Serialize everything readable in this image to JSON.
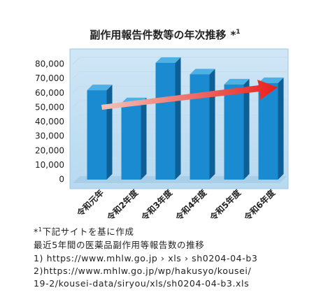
{
  "chart_data": {
    "type": "bar",
    "title": "副作用報告件数等の年次推移",
    "title_mark": "*",
    "title_mark_sup": "1",
    "categories": [
      "令和元年",
      "令和2年度",
      "令和3年度",
      "令和4年度",
      "令和5年度",
      "令和6年度"
    ],
    "values": [
      62000,
      53000,
      81000,
      73000,
      66000,
      67000
    ],
    "color": "#1a8bd0",
    "ylim": [
      0,
      80000
    ],
    "yticks": [
      0,
      {
        "value": 10000,
        "label": "10,000"
      },
      {
        "value": 20000,
        "label": "20,000"
      },
      {
        "value": 30000,
        "label": "30,000"
      },
      {
        "value": 40000,
        "label": "40,000"
      },
      {
        "value": 50000,
        "label": "50,000"
      },
      {
        "value": 60000,
        "label": "60,000"
      },
      {
        "value": 70000,
        "label": "70,000"
      },
      {
        "value": 80000,
        "label": "80,000"
      }
    ],
    "grid": true
  },
  "notes": {
    "mark": "*",
    "mark_sup": "1",
    "line0": "下記サイトを基に作成",
    "line1": "最近5年間の医薬品副作用等報告数の推移",
    "line2": "1) https://www.mhlw.go.jp › xls › sh0204-04-b3",
    "line3": "2)https://www.mhlw.go.jp/wp/hakusyo/kousei/",
    "line4": "19-2/kousei-data/siryou/xls/sh0204-04-b3.xls"
  }
}
